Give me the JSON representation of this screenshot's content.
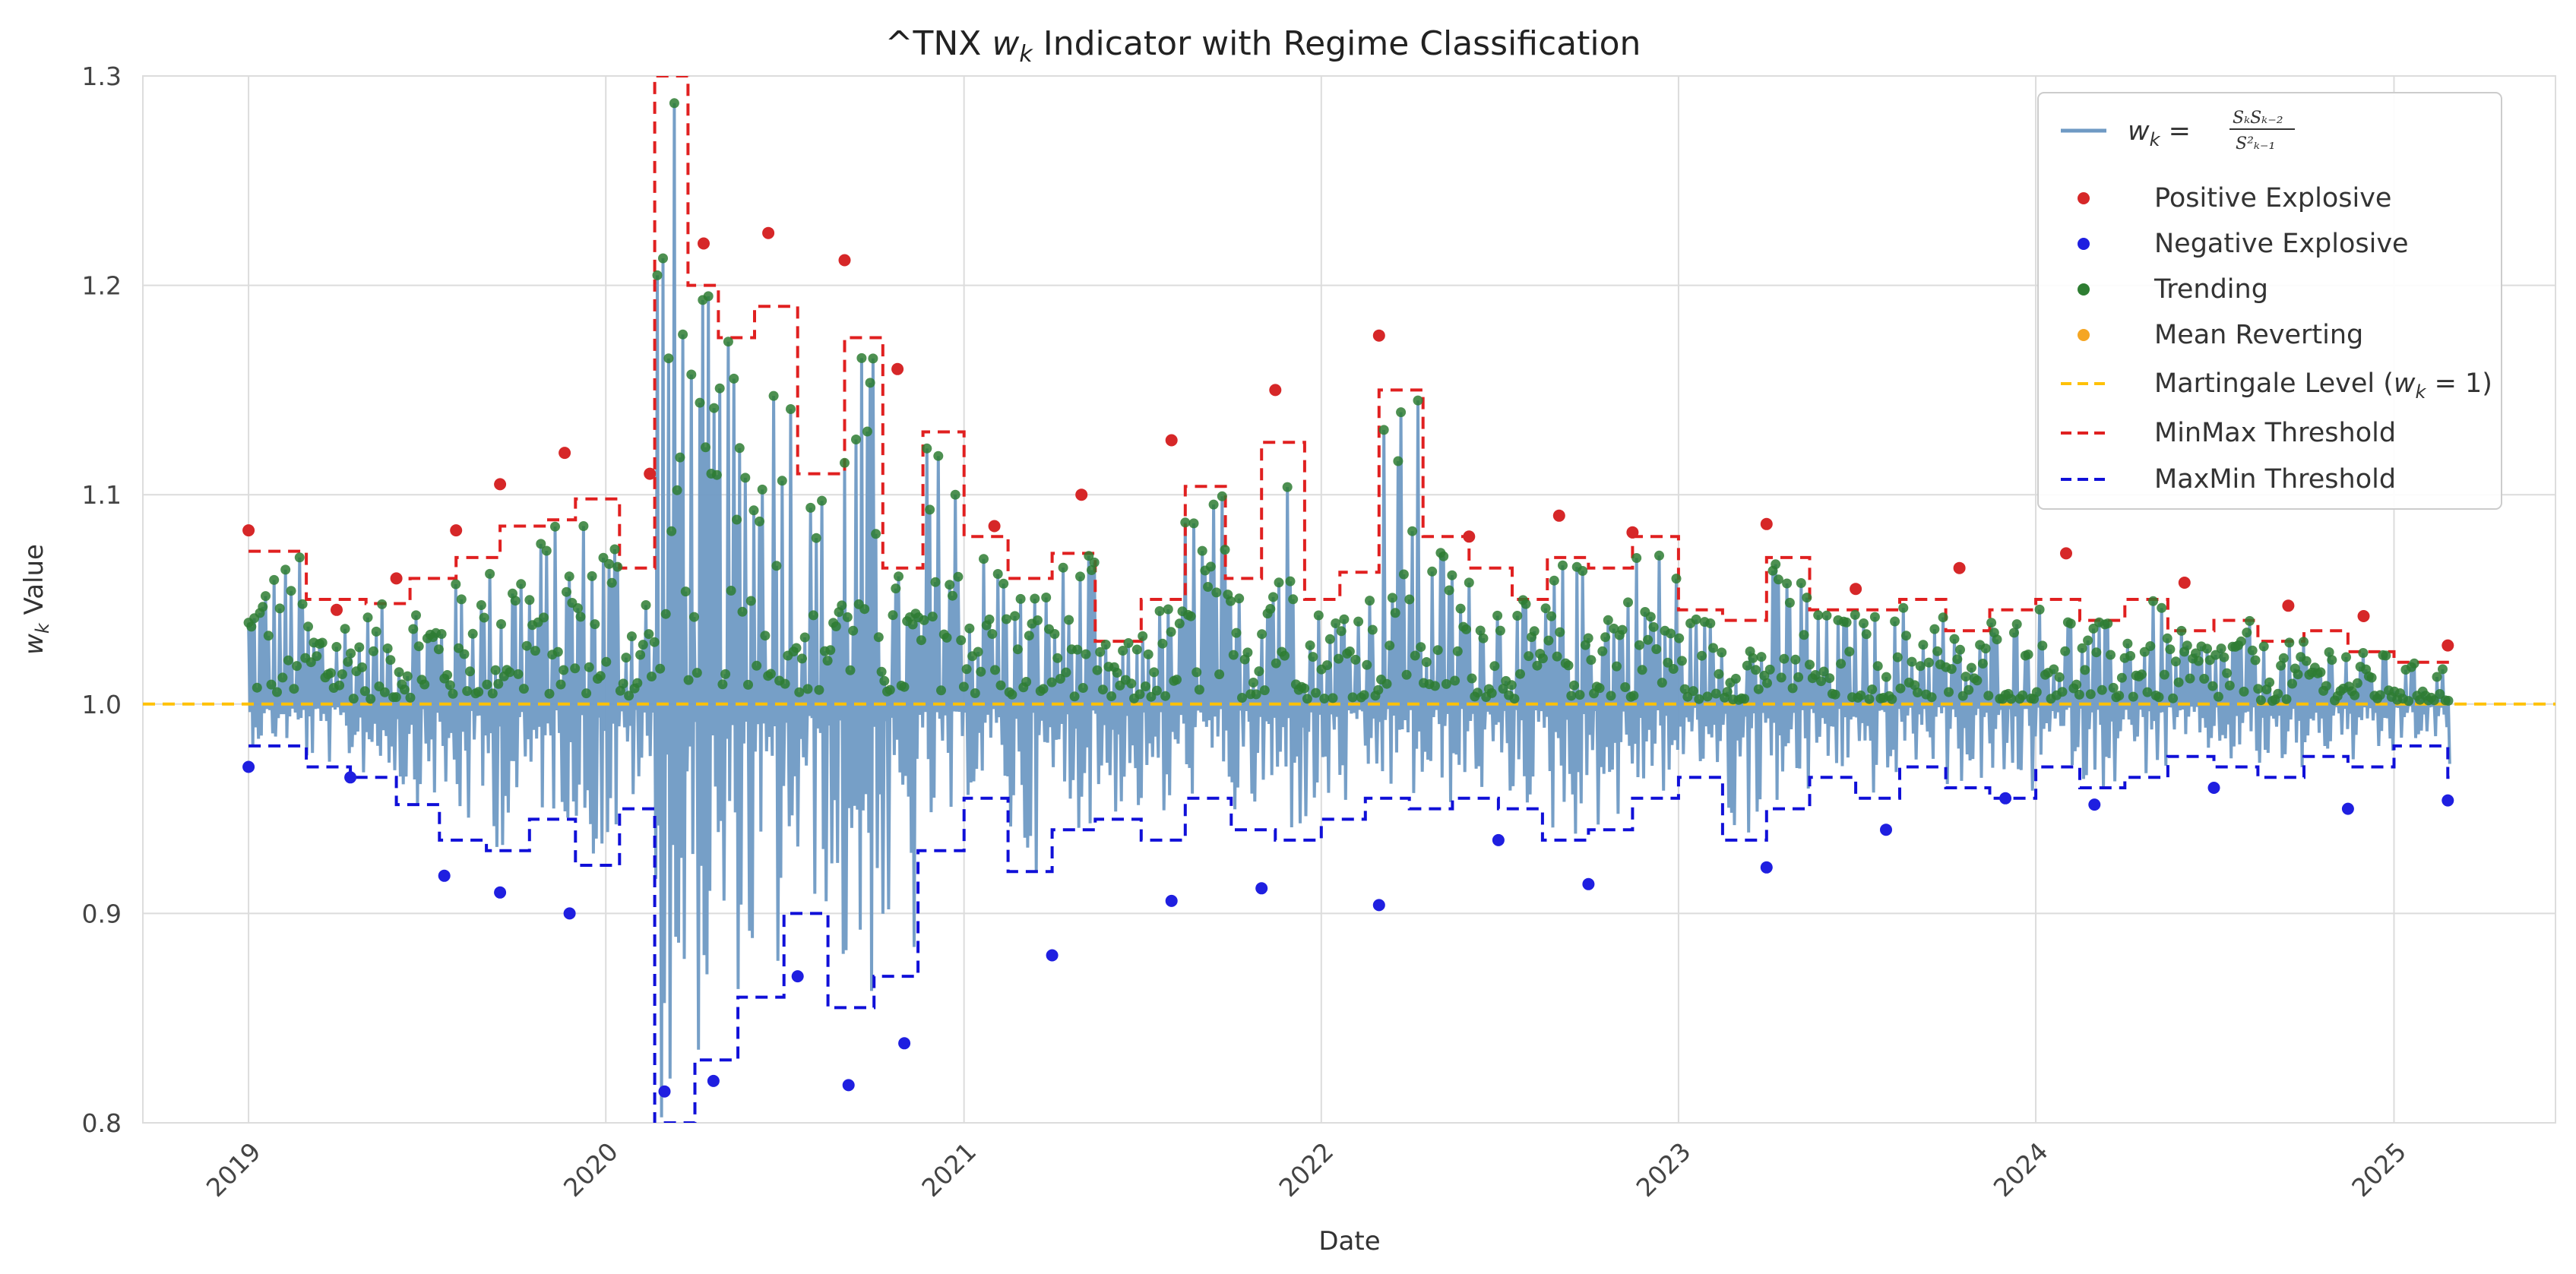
{
  "chart_data": {
    "type": "line",
    "title": "^TNX w_k Indicator with Regime Classification",
    "title_prefix": "^TNX ",
    "title_var": "w",
    "title_sub": "k",
    "title_suffix": " Indicator with Regime Classification",
    "xlabel": "Date",
    "ylabel_var": "w",
    "ylabel_sub": "k",
    "ylabel_suffix": " Value",
    "ylim": [
      0.8,
      1.3
    ],
    "xlim": [
      "2018-09-15",
      "2025-06-15"
    ],
    "x_ticks": [
      "2019",
      "2020",
      "2021",
      "2022",
      "2023",
      "2024",
      "2025"
    ],
    "y_ticks": [
      "0.8",
      "0.9",
      "1.0",
      "1.1",
      "1.2",
      "1.3"
    ],
    "grid": true,
    "legend_position": "top-right",
    "legend": {
      "wk_formula": "w_k = S_k S_{k-2} / S_{k-1}^2",
      "wk_lhs": "w",
      "wk_lhs_sub": "k",
      "wk_num": "SₖSₖ₋₂",
      "wk_den": "S²ₖ₋₁",
      "positive": "Positive Explosive",
      "negative": "Negative Explosive",
      "trending": "Trending",
      "mean_reverting": "Mean Reverting",
      "martingale_prefix": "Martingale Level (",
      "martingale_var": "w",
      "martingale_sub": "k",
      "martingale_suffix": " = 1)",
      "minmax": "MinMax Threshold",
      "maxmin": "MaxMin Threshold"
    },
    "colors": {
      "series": "#6f9ac4",
      "positive": "#d62728",
      "negative": "#1f1fe0",
      "trending": "#2e7d32",
      "mean_reverting": "#f5a623",
      "martingale": "#ffc107",
      "minmax": "#e02020",
      "maxmin": "#1010d8"
    },
    "martingale_level": 1.0,
    "minmax_threshold": [
      [
        "2019-01-01",
        1.073
      ],
      [
        "2019-03-01",
        1.05
      ],
      [
        "2019-05-01",
        1.048
      ],
      [
        "2019-06-15",
        1.06
      ],
      [
        "2019-08-01",
        1.07
      ],
      [
        "2019-09-15",
        1.085
      ],
      [
        "2019-11-01",
        1.088
      ],
      [
        "2019-12-01",
        1.098
      ],
      [
        "2020-01-15",
        1.065
      ],
      [
        "2020-02-20",
        1.3
      ],
      [
        "2020-03-25",
        1.2
      ],
      [
        "2020-04-25",
        1.175
      ],
      [
        "2020-06-01",
        1.19
      ],
      [
        "2020-07-15",
        1.11
      ],
      [
        "2020-09-01",
        1.175
      ],
      [
        "2020-10-10",
        1.065
      ],
      [
        "2020-11-20",
        1.13
      ],
      [
        "2021-01-01",
        1.08
      ],
      [
        "2021-02-15",
        1.06
      ],
      [
        "2021-04-01",
        1.072
      ],
      [
        "2021-05-15",
        1.03
      ],
      [
        "2021-07-01",
        1.05
      ],
      [
        "2021-08-15",
        1.104
      ],
      [
        "2021-09-25",
        1.06
      ],
      [
        "2021-11-01",
        1.125
      ],
      [
        "2021-12-15",
        1.05
      ],
      [
        "2022-01-20",
        1.063
      ],
      [
        "2022-03-01",
        1.15
      ],
      [
        "2022-04-15",
        1.08
      ],
      [
        "2022-06-01",
        1.065
      ],
      [
        "2022-07-15",
        1.05
      ],
      [
        "2022-08-20",
        1.07
      ],
      [
        "2022-10-01",
        1.065
      ],
      [
        "2022-11-15",
        1.08
      ],
      [
        "2023-01-01",
        1.045
      ],
      [
        "2023-02-15",
        1.04
      ],
      [
        "2023-04-01",
        1.07
      ],
      [
        "2023-05-15",
        1.045
      ],
      [
        "2023-07-01",
        1.045
      ],
      [
        "2023-08-15",
        1.05
      ],
      [
        "2023-10-01",
        1.035
      ],
      [
        "2023-11-15",
        1.045
      ],
      [
        "2024-01-01",
        1.05
      ],
      [
        "2024-02-15",
        1.04
      ],
      [
        "2024-04-01",
        1.05
      ],
      [
        "2024-05-15",
        1.035
      ],
      [
        "2024-07-01",
        1.04
      ],
      [
        "2024-08-15",
        1.03
      ],
      [
        "2024-10-01",
        1.035
      ],
      [
        "2024-11-15",
        1.025
      ],
      [
        "2025-01-01",
        1.02
      ],
      [
        "2025-02-25",
        1.02
      ]
    ],
    "maxmin_threshold": [
      [
        "2019-01-01",
        0.98
      ],
      [
        "2019-03-01",
        0.97
      ],
      [
        "2019-04-15",
        0.965
      ],
      [
        "2019-06-01",
        0.952
      ],
      [
        "2019-07-15",
        0.935
      ],
      [
        "2019-09-01",
        0.93
      ],
      [
        "2019-10-15",
        0.945
      ],
      [
        "2019-12-01",
        0.923
      ],
      [
        "2020-01-15",
        0.95
      ],
      [
        "2020-02-20",
        0.8
      ],
      [
        "2020-04-01",
        0.83
      ],
      [
        "2020-05-15",
        0.86
      ],
      [
        "2020-07-01",
        0.9
      ],
      [
        "2020-08-15",
        0.855
      ],
      [
        "2020-10-01",
        0.87
      ],
      [
        "2020-11-15",
        0.93
      ],
      [
        "2021-01-01",
        0.955
      ],
      [
        "2021-02-15",
        0.92
      ],
      [
        "2021-04-01",
        0.94
      ],
      [
        "2021-05-15",
        0.945
      ],
      [
        "2021-07-01",
        0.935
      ],
      [
        "2021-08-15",
        0.955
      ],
      [
        "2021-10-01",
        0.94
      ],
      [
        "2021-11-15",
        0.935
      ],
      [
        "2022-01-01",
        0.945
      ],
      [
        "2022-02-15",
        0.955
      ],
      [
        "2022-04-01",
        0.95
      ],
      [
        "2022-05-15",
        0.955
      ],
      [
        "2022-07-01",
        0.95
      ],
      [
        "2022-08-15",
        0.935
      ],
      [
        "2022-10-01",
        0.94
      ],
      [
        "2022-11-15",
        0.955
      ],
      [
        "2023-01-01",
        0.965
      ],
      [
        "2023-02-15",
        0.935
      ],
      [
        "2023-04-01",
        0.95
      ],
      [
        "2023-05-15",
        0.965
      ],
      [
        "2023-07-01",
        0.955
      ],
      [
        "2023-08-15",
        0.97
      ],
      [
        "2023-10-01",
        0.96
      ],
      [
        "2023-11-15",
        0.955
      ],
      [
        "2024-01-01",
        0.97
      ],
      [
        "2024-02-15",
        0.96
      ],
      [
        "2024-04-01",
        0.965
      ],
      [
        "2024-05-15",
        0.975
      ],
      [
        "2024-07-01",
        0.97
      ],
      [
        "2024-08-15",
        0.965
      ],
      [
        "2024-10-01",
        0.975
      ],
      [
        "2024-11-15",
        0.97
      ],
      [
        "2025-01-01",
        0.98
      ],
      [
        "2025-02-25",
        0.965
      ]
    ],
    "positive_explosive": [
      [
        "2019-01-01",
        1.083
      ],
      [
        "2019-04-01",
        1.045
      ],
      [
        "2019-06-01",
        1.06
      ],
      [
        "2019-08-01",
        1.083
      ],
      [
        "2019-09-15",
        1.105
      ],
      [
        "2019-11-20",
        1.12
      ],
      [
        "2020-02-15",
        1.11
      ],
      [
        "2020-04-10",
        1.22
      ],
      [
        "2020-06-15",
        1.225
      ],
      [
        "2020-09-01",
        1.212
      ],
      [
        "2020-10-25",
        1.16
      ],
      [
        "2021-02-01",
        1.085
      ],
      [
        "2021-05-01",
        1.1
      ],
      [
        "2021-08-01",
        1.126
      ],
      [
        "2021-11-15",
        1.15
      ],
      [
        "2022-03-01",
        1.176
      ],
      [
        "2022-06-01",
        1.08
      ],
      [
        "2022-09-01",
        1.09
      ],
      [
        "2022-11-15",
        1.082
      ],
      [
        "2023-04-01",
        1.086
      ],
      [
        "2023-07-01",
        1.055
      ],
      [
        "2023-10-15",
        1.065
      ],
      [
        "2024-02-01",
        1.072
      ],
      [
        "2024-06-01",
        1.058
      ],
      [
        "2024-09-15",
        1.047
      ],
      [
        "2024-12-01",
        1.042
      ],
      [
        "2025-02-25",
        1.028
      ]
    ],
    "negative_explosive": [
      [
        "2019-01-01",
        0.97
      ],
      [
        "2019-04-15",
        0.965
      ],
      [
        "2019-07-20",
        0.918
      ],
      [
        "2019-09-15",
        0.91
      ],
      [
        "2019-11-25",
        0.9
      ],
      [
        "2020-03-01",
        0.815
      ],
      [
        "2020-04-20",
        0.82
      ],
      [
        "2020-07-15",
        0.87
      ],
      [
        "2020-09-05",
        0.818
      ],
      [
        "2020-11-01",
        0.838
      ],
      [
        "2021-04-01",
        0.88
      ],
      [
        "2021-08-01",
        0.906
      ],
      [
        "2021-11-01",
        0.912
      ],
      [
        "2022-03-01",
        0.904
      ],
      [
        "2022-07-01",
        0.935
      ],
      [
        "2022-10-01",
        0.914
      ],
      [
        "2023-04-01",
        0.922
      ],
      [
        "2023-08-01",
        0.94
      ],
      [
        "2023-12-01",
        0.955
      ],
      [
        "2024-03-01",
        0.952
      ],
      [
        "2024-07-01",
        0.96
      ],
      [
        "2024-11-15",
        0.95
      ],
      [
        "2025-02-25",
        0.954
      ]
    ],
    "trending_range": [
      1.0,
      1.23
    ],
    "mean_reverting_range": [
      0.88,
      1.0
    ]
  }
}
